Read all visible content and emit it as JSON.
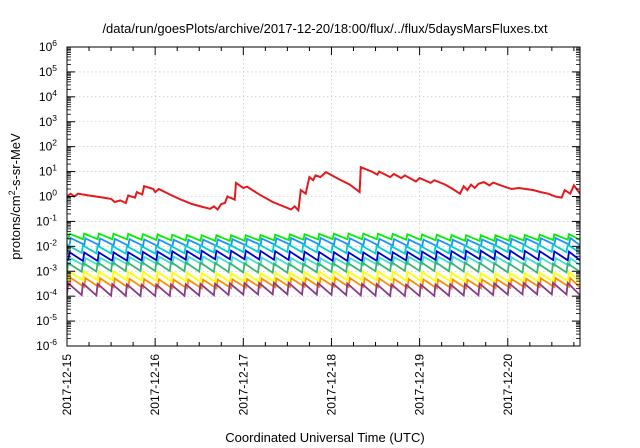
{
  "chart_data": {
    "type": "line",
    "title": "/data/run/goesPlots/archive/2017-12-20/18:00/flux/../flux/5daysMarsFluxes.txt",
    "xlabel": "Coordinated Universal Time (UTC)",
    "ylabel": "protons/cm²-s-sr-MeV",
    "yscale": "log",
    "ylim": [
      1e-06,
      1000000.0
    ],
    "xlim": [
      "2017-12-15 00:00",
      "2017-12-20 19:40"
    ],
    "x_tick_labels": [
      "2017-12-15",
      "2017-12-16",
      "2017-12-17",
      "2017-12-18",
      "2017-12-19",
      "2017-12-20"
    ],
    "y_tick_labels": [
      {
        "base": "10",
        "exp": "-6"
      },
      {
        "base": "10",
        "exp": "-5"
      },
      {
        "base": "10",
        "exp": "-4"
      },
      {
        "base": "10",
        "exp": "-3"
      },
      {
        "base": "10",
        "exp": "-2"
      },
      {
        "base": "10",
        "exp": "-1"
      },
      {
        "base": "10",
        "exp": "0"
      },
      {
        "base": "10",
        "exp": "1"
      },
      {
        "base": "10",
        "exp": "2"
      },
      {
        "base": "10",
        "exp": "3"
      },
      {
        "base": "10",
        "exp": "4"
      },
      {
        "base": "10",
        "exp": "5"
      },
      {
        "base": "10",
        "exp": "6"
      }
    ],
    "grid": true,
    "legend": "none",
    "series": [
      {
        "color": "#e41a1c",
        "points": [
          [
            "2017-12-15 00:00",
            1.0
          ],
          [
            "2017-12-15 01:00",
            1.3
          ],
          [
            "2017-12-15 02:00",
            1.0
          ],
          [
            "2017-12-15 03:00",
            1.3
          ],
          [
            "2017-12-15 06:00",
            1.1
          ],
          [
            "2017-12-15 09:00",
            0.95
          ],
          [
            "2017-12-15 12:00",
            0.8
          ],
          [
            "2017-12-15 13:00",
            0.6
          ],
          [
            "2017-12-15 14:30",
            0.7
          ],
          [
            "2017-12-15 16:00",
            0.55
          ],
          [
            "2017-12-15 16:40",
            1.1
          ],
          [
            "2017-12-15 18:30",
            0.9
          ],
          [
            "2017-12-15 19:00",
            1.5
          ],
          [
            "2017-12-15 20:30",
            1.2
          ],
          [
            "2017-12-15 21:00",
            2.6
          ],
          [
            "2017-12-15 23:30",
            2.0
          ],
          [
            "2017-12-16 00:00",
            1.5
          ],
          [
            "2017-12-16 01:00",
            2.0
          ],
          [
            "2017-12-16 04:00",
            1.2
          ],
          [
            "2017-12-16 07:00",
            0.75
          ],
          [
            "2017-12-16 10:00",
            0.5
          ],
          [
            "2017-12-16 13:00",
            0.38
          ],
          [
            "2017-12-16 15:00",
            0.32
          ],
          [
            "2017-12-16 16:00",
            0.4
          ],
          [
            "2017-12-16 17:00",
            0.3
          ],
          [
            "2017-12-16 18:00",
            0.5
          ],
          [
            "2017-12-16 19:00",
            0.55
          ],
          [
            "2017-12-16 19:40",
            1.0
          ],
          [
            "2017-12-16 21:40",
            0.75
          ],
          [
            "2017-12-16 22:00",
            3.5
          ],
          [
            "2017-12-17 00:00",
            2.2
          ],
          [
            "2017-12-17 01:00",
            2.5
          ],
          [
            "2017-12-17 04:00",
            1.3
          ],
          [
            "2017-12-17 08:00",
            0.6
          ],
          [
            "2017-12-17 12:00",
            0.35
          ],
          [
            "2017-12-17 13:00",
            0.3
          ],
          [
            "2017-12-17 14:00",
            0.4
          ],
          [
            "2017-12-17 15:00",
            0.28
          ],
          [
            "2017-12-17 15:40",
            1.8
          ],
          [
            "2017-12-17 17:00",
            1.3
          ],
          [
            "2017-12-17 18:00",
            6.0
          ],
          [
            "2017-12-17 19:00",
            4.5
          ],
          [
            "2017-12-17 19:40",
            7.0
          ],
          [
            "2017-12-17 21:00",
            6.0
          ],
          [
            "2017-12-17 22:30",
            9.5
          ],
          [
            "2017-12-18 02:00",
            5.0
          ],
          [
            "2017-12-18 05:00",
            3.0
          ],
          [
            "2017-12-18 07:40",
            1.5
          ],
          [
            "2017-12-18 08:00",
            15.0
          ],
          [
            "2017-12-18 11:00",
            10.0
          ],
          [
            "2017-12-18 12:30",
            7.5
          ],
          [
            "2017-12-18 13:00",
            10.0
          ],
          [
            "2017-12-18 16:00",
            6.0
          ],
          [
            "2017-12-18 17:00",
            8.0
          ],
          [
            "2017-12-18 19:00",
            5.5
          ],
          [
            "2017-12-18 20:00",
            7.0
          ],
          [
            "2017-12-18 23:00",
            4.0
          ],
          [
            "2017-12-19 00:00",
            5.5
          ],
          [
            "2017-12-19 03:00",
            3.5
          ],
          [
            "2017-12-19 04:00",
            4.5
          ],
          [
            "2017-12-19 07:00",
            3.0
          ],
          [
            "2017-12-19 09:00",
            2.0
          ],
          [
            "2017-12-19 11:00",
            1.3
          ],
          [
            "2017-12-19 12:00",
            2.6
          ],
          [
            "2017-12-19 13:00",
            1.8
          ],
          [
            "2017-12-19 14:00",
            3.0
          ],
          [
            "2017-12-19 15:00",
            2.2
          ],
          [
            "2017-12-19 16:00",
            3.2
          ],
          [
            "2017-12-19 17:30",
            3.8
          ],
          [
            "2017-12-19 19:00",
            2.8
          ],
          [
            "2017-12-19 20:00",
            3.6
          ],
          [
            "2017-12-19 23:00",
            2.5
          ],
          [
            "2017-12-20 01:00",
            2.0
          ],
          [
            "2017-12-20 03:00",
            2.2
          ],
          [
            "2017-12-20 07:00",
            1.8
          ],
          [
            "2017-12-20 09:00",
            1.5
          ],
          [
            "2017-12-20 11:00",
            1.3
          ],
          [
            "2017-12-20 13:00",
            1.0
          ],
          [
            "2017-12-20 14:40",
            0.9
          ],
          [
            "2017-12-20 15:30",
            1.8
          ],
          [
            "2017-12-20 17:00",
            1.3
          ],
          [
            "2017-12-20 18:00",
            2.8
          ],
          [
            "2017-12-20 19:40",
            1.3
          ]
        ]
      },
      {
        "color": "#00ee00",
        "baseline": 0.018,
        "peak": 0.03
      },
      {
        "color": "#1e90ff",
        "baseline": 0.011,
        "peak": 0.02
      },
      {
        "color": "#00ced1",
        "baseline": 0.0055,
        "peak": 0.011
      },
      {
        "color": "#0000cd",
        "baseline": 0.0028,
        "peak": 0.0062
      },
      {
        "color": "#40e0d0",
        "baseline": 0.0018,
        "peak": 0.0036
      },
      {
        "color": "#3cb371",
        "baseline": 0.00095,
        "peak": 0.0022
      },
      {
        "color": "#ffff00",
        "baseline": 0.0004,
        "peak": 0.0009
      },
      {
        "color": "#ff8c00",
        "baseline": 0.00022,
        "peak": 0.0005
      },
      {
        "color": "#8b3a8b",
        "baseline": 0.00011,
        "peak": 0.00032
      }
    ]
  }
}
